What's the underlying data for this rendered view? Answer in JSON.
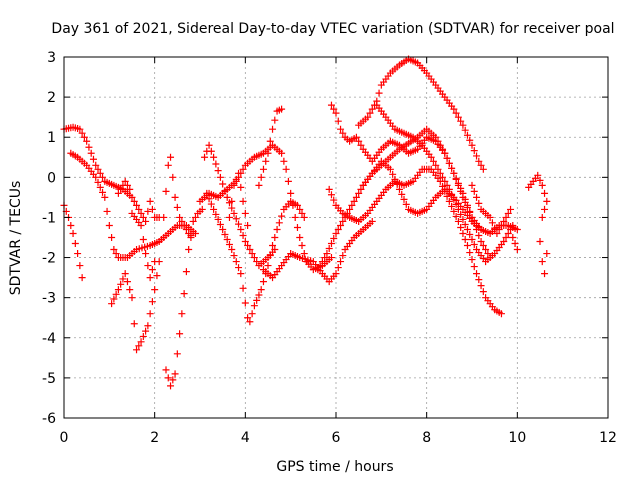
{
  "chart_data": {
    "type": "scatter",
    "title": "Day 361 of 2021, Sidereal Day-to-day VTEC variation (SDTVAR) for receiver poal",
    "xlabel": "GPS time / hours",
    "ylabel": "SDTVAR / TECUs",
    "xlim": [
      0,
      12
    ],
    "ylim": [
      -6,
      3
    ],
    "xticks": [
      "0",
      "2",
      "4",
      "6",
      "8",
      "10",
      "12"
    ],
    "yticks": [
      "-6",
      "-5",
      "-4",
      "-3",
      "-2",
      "-1",
      "0",
      "1",
      "2",
      "3"
    ],
    "marker": "+",
    "grid": true,
    "color": "#ff0000",
    "series": [
      {
        "name": "s1",
        "points": [
          [
            0.0,
            1.2
          ],
          [
            0.2,
            1.25
          ],
          [
            0.35,
            1.2
          ],
          [
            0.5,
            0.9
          ],
          [
            0.7,
            0.3
          ],
          [
            0.9,
            -0.1
          ],
          [
            1.1,
            -0.2
          ],
          [
            1.3,
            -0.3
          ],
          [
            1.5,
            -0.5
          ],
          [
            1.7,
            -0.9
          ],
          [
            1.8,
            -1.1
          ],
          [
            1.9,
            -0.6
          ],
          [
            2.0,
            -1.0
          ],
          [
            2.1,
            -1.0
          ]
        ]
      },
      {
        "name": "s2",
        "points": [
          [
            0.0,
            -0.7
          ],
          [
            0.1,
            -1.0
          ],
          [
            0.2,
            -1.4
          ],
          [
            0.3,
            -1.9
          ],
          [
            0.4,
            -2.5
          ]
        ]
      },
      {
        "name": "s3",
        "points": [
          [
            0.15,
            0.6
          ],
          [
            0.3,
            0.5
          ],
          [
            0.5,
            0.3
          ],
          [
            0.7,
            0.0
          ],
          [
            0.9,
            -0.5
          ],
          [
            1.0,
            -1.2
          ],
          [
            1.1,
            -1.8
          ],
          [
            1.2,
            -2.0
          ],
          [
            1.4,
            -2.0
          ],
          [
            1.6,
            -1.8
          ],
          [
            1.9,
            -1.7
          ],
          [
            2.1,
            -1.6
          ],
          [
            2.3,
            -1.4
          ],
          [
            2.5,
            -1.2
          ],
          [
            2.7,
            -1.2
          ],
          [
            2.9,
            -1.4
          ]
        ]
      },
      {
        "name": "s4",
        "points": [
          [
            1.05,
            -3.15
          ],
          [
            1.2,
            -2.8
          ],
          [
            1.35,
            -2.4
          ],
          [
            1.5,
            -3.0
          ],
          [
            1.6,
            -4.3
          ],
          [
            1.7,
            -4.1
          ],
          [
            1.85,
            -3.7
          ],
          [
            2.0,
            -2.8
          ],
          [
            2.1,
            -2.1
          ],
          [
            2.2,
            -1.0
          ],
          [
            2.3,
            0.3
          ],
          [
            2.35,
            0.5
          ],
          [
            2.45,
            -0.5
          ],
          [
            2.55,
            -1.0
          ],
          [
            2.7,
            -1.3
          ],
          [
            2.8,
            -1.5
          ]
        ]
      },
      {
        "name": "s5",
        "points": [
          [
            1.2,
            -0.4
          ],
          [
            1.35,
            -0.1
          ],
          [
            1.45,
            -0.3
          ],
          [
            1.5,
            -0.9
          ],
          [
            1.7,
            -1.2
          ],
          [
            1.8,
            -1.9
          ],
          [
            1.9,
            -2.5
          ],
          [
            2.0,
            -2.1
          ]
        ]
      },
      {
        "name": "s6",
        "points": [
          [
            2.25,
            -4.8
          ],
          [
            2.35,
            -5.2
          ],
          [
            2.45,
            -4.9
          ],
          [
            2.55,
            -3.9
          ],
          [
            2.65,
            -2.9
          ],
          [
            2.75,
            -1.8
          ],
          [
            2.85,
            -1.1
          ],
          [
            2.95,
            -0.9
          ],
          [
            3.05,
            -0.8
          ]
        ]
      },
      {
        "name": "s7",
        "points": [
          [
            3.1,
            0.5
          ],
          [
            3.2,
            0.8
          ],
          [
            3.3,
            0.5
          ],
          [
            3.45,
            0.0
          ],
          [
            3.6,
            -0.5
          ],
          [
            3.75,
            -0.9
          ],
          [
            3.9,
            -1.3
          ],
          [
            4.0,
            -1.6
          ],
          [
            4.15,
            -1.9
          ],
          [
            4.3,
            -2.2
          ],
          [
            4.5,
            -2.0
          ],
          [
            4.65,
            -1.8
          ]
        ]
      },
      {
        "name": "s8",
        "points": [
          [
            3.15,
            -0.4
          ],
          [
            3.3,
            -0.8
          ],
          [
            3.5,
            -1.3
          ],
          [
            3.7,
            -1.8
          ],
          [
            3.9,
            -2.4
          ],
          [
            4.05,
            -3.5
          ],
          [
            4.1,
            -3.6
          ],
          [
            4.2,
            -3.2
          ],
          [
            4.35,
            -2.8
          ],
          [
            4.5,
            -2.2
          ],
          [
            4.6,
            -1.7
          ],
          [
            4.7,
            -1.3
          ],
          [
            4.85,
            -0.8
          ],
          [
            5.0,
            -0.6
          ],
          [
            5.15,
            -0.7
          ],
          [
            5.3,
            -1.0
          ]
        ]
      },
      {
        "name": "s9",
        "points": [
          [
            3.0,
            -0.6
          ],
          [
            3.2,
            -0.4
          ],
          [
            3.4,
            -0.5
          ],
          [
            3.6,
            -0.3
          ],
          [
            3.8,
            -0.1
          ],
          [
            4.0,
            0.3
          ],
          [
            4.2,
            0.5
          ],
          [
            4.4,
            0.6
          ],
          [
            4.6,
            0.8
          ],
          [
            4.8,
            0.6
          ],
          [
            4.9,
            0.2
          ],
          [
            5.0,
            -0.4
          ],
          [
            5.1,
            -1.0
          ],
          [
            5.2,
            -1.5
          ],
          [
            5.35,
            -2.1
          ],
          [
            5.5,
            -2.3
          ],
          [
            5.7,
            -2.2
          ],
          [
            5.9,
            -2.0
          ]
        ]
      },
      {
        "name": "s10",
        "points": [
          [
            3.65,
            -1.0
          ],
          [
            3.75,
            -0.2
          ],
          [
            3.85,
            0.1
          ],
          [
            3.95,
            -0.6
          ],
          [
            4.05,
            -1.2
          ]
        ]
      },
      {
        "name": "s11",
        "points": [
          [
            4.3,
            -0.2
          ],
          [
            4.4,
            0.2
          ],
          [
            4.5,
            0.6
          ],
          [
            4.6,
            1.2
          ],
          [
            4.7,
            1.65
          ],
          [
            4.8,
            1.7
          ]
        ]
      },
      {
        "name": "s12",
        "points": [
          [
            4.4,
            -2.3
          ],
          [
            4.6,
            -2.5
          ],
          [
            4.8,
            -2.2
          ],
          [
            5.0,
            -1.9
          ],
          [
            5.2,
            -2.0
          ],
          [
            5.5,
            -2.1
          ],
          [
            5.7,
            -2.4
          ],
          [
            5.85,
            -2.6
          ],
          [
            6.0,
            -2.4
          ],
          [
            6.2,
            -1.8
          ],
          [
            6.4,
            -1.5
          ],
          [
            6.6,
            -1.3
          ],
          [
            6.8,
            -1.1
          ]
        ]
      },
      {
        "name": "s13",
        "points": [
          [
            5.6,
            -2.3
          ],
          [
            5.8,
            -1.9
          ],
          [
            6.0,
            -1.4
          ],
          [
            6.2,
            -1.0
          ],
          [
            6.4,
            -0.6
          ],
          [
            6.6,
            -0.2
          ],
          [
            6.8,
            0.1
          ],
          [
            7.0,
            0.4
          ],
          [
            7.2,
            0.2
          ],
          [
            7.4,
            -0.3
          ],
          [
            7.6,
            -0.8
          ],
          [
            7.8,
            -0.9
          ],
          [
            8.0,
            -0.8
          ],
          [
            8.2,
            -0.5
          ],
          [
            8.4,
            -0.3
          ],
          [
            8.6,
            -0.5
          ],
          [
            8.8,
            -0.8
          ],
          [
            9.0,
            -1.1
          ],
          [
            9.2,
            -1.3
          ]
        ]
      },
      {
        "name": "s14",
        "points": [
          [
            5.85,
            -0.3
          ],
          [
            6.0,
            -0.7
          ],
          [
            6.15,
            -0.9
          ],
          [
            6.3,
            -1.0
          ],
          [
            6.5,
            -1.1
          ],
          [
            6.7,
            -0.9
          ],
          [
            6.9,
            -0.6
          ],
          [
            7.1,
            -0.3
          ],
          [
            7.3,
            -0.1
          ],
          [
            7.5,
            -0.2
          ],
          [
            7.7,
            -0.1
          ],
          [
            7.9,
            0.2
          ],
          [
            8.1,
            0.2
          ],
          [
            8.3,
            -0.1
          ],
          [
            8.5,
            -0.6
          ],
          [
            8.7,
            -1.1
          ],
          [
            8.9,
            -1.7
          ],
          [
            9.1,
            -2.4
          ],
          [
            9.3,
            -3.0
          ],
          [
            9.5,
            -3.3
          ],
          [
            9.65,
            -3.4
          ]
        ]
      },
      {
        "name": "s15",
        "points": [
          [
            5.9,
            1.8
          ],
          [
            6.0,
            1.6
          ],
          [
            6.1,
            1.2
          ],
          [
            6.2,
            1.0
          ],
          [
            6.3,
            0.9
          ],
          [
            6.45,
            1.0
          ],
          [
            6.6,
            0.7
          ],
          [
            6.8,
            0.4
          ],
          [
            7.0,
            0.7
          ],
          [
            7.2,
            0.9
          ],
          [
            7.4,
            0.8
          ],
          [
            7.6,
            0.6
          ],
          [
            7.8,
            0.7
          ],
          [
            8.0,
            1.0
          ],
          [
            8.2,
            0.9
          ],
          [
            8.4,
            0.6
          ],
          [
            8.6,
            0.1
          ],
          [
            8.8,
            -0.4
          ],
          [
            9.0,
            -1.0
          ],
          [
            9.2,
            -1.6
          ],
          [
            9.4,
            -2.0
          ]
        ]
      },
      {
        "name": "s16",
        "points": [
          [
            6.5,
            1.3
          ],
          [
            6.7,
            1.5
          ],
          [
            6.9,
            1.9
          ],
          [
            7.0,
            2.3
          ],
          [
            7.2,
            2.6
          ],
          [
            7.4,
            2.8
          ],
          [
            7.6,
            2.95
          ],
          [
            7.8,
            2.85
          ],
          [
            8.0,
            2.6
          ],
          [
            8.2,
            2.3
          ],
          [
            8.4,
            2.0
          ],
          [
            8.6,
            1.7
          ],
          [
            8.8,
            1.3
          ],
          [
            9.0,
            0.8
          ],
          [
            9.15,
            0.4
          ],
          [
            9.25,
            0.2
          ]
        ]
      },
      {
        "name": "s17",
        "points": [
          [
            6.6,
            -0.2
          ],
          [
            6.8,
            0.1
          ],
          [
            7.0,
            0.3
          ],
          [
            7.2,
            0.5
          ],
          [
            7.4,
            0.7
          ],
          [
            7.6,
            0.85
          ],
          [
            7.8,
            1.0
          ],
          [
            8.0,
            1.2
          ],
          [
            8.2,
            1.0
          ],
          [
            8.4,
            0.6
          ],
          [
            8.6,
            0.1
          ],
          [
            8.8,
            -0.5
          ],
          [
            9.0,
            -1.0
          ],
          [
            9.2,
            -1.3
          ],
          [
            9.4,
            -1.4
          ],
          [
            9.6,
            -1.2
          ],
          [
            9.8,
            -1.2
          ],
          [
            10.0,
            -1.3
          ]
        ]
      },
      {
        "name": "s18",
        "points": [
          [
            6.9,
            1.8
          ],
          [
            7.1,
            1.5
          ],
          [
            7.3,
            1.2
          ],
          [
            7.5,
            1.1
          ],
          [
            7.7,
            1.0
          ],
          [
            7.9,
            0.8
          ],
          [
            8.1,
            0.5
          ],
          [
            8.3,
            0.1
          ],
          [
            8.5,
            -0.3
          ],
          [
            8.7,
            -0.8
          ],
          [
            8.9,
            -1.3
          ],
          [
            9.1,
            -1.8
          ],
          [
            9.3,
            -2.1
          ],
          [
            9.5,
            -1.9
          ],
          [
            9.7,
            -1.6
          ],
          [
            9.9,
            -1.2
          ]
        ]
      },
      {
        "name": "s19",
        "points": [
          [
            9.0,
            -0.2
          ],
          [
            9.2,
            -0.8
          ],
          [
            9.4,
            -1.0
          ],
          [
            9.55,
            -1.4
          ],
          [
            9.7,
            -1.1
          ],
          [
            9.85,
            -0.8
          ],
          [
            9.9,
            -1.5
          ],
          [
            10.0,
            -1.8
          ]
        ]
      },
      {
        "name": "s20",
        "points": [
          [
            10.25,
            -0.25
          ],
          [
            10.45,
            0.05
          ],
          [
            10.55,
            -0.2
          ],
          [
            10.65,
            -0.6
          ],
          [
            10.55,
            -1.0
          ],
          [
            10.5,
            -1.6
          ],
          [
            10.55,
            -2.1
          ],
          [
            10.6,
            -2.4
          ],
          [
            10.65,
            -1.9
          ]
        ]
      }
    ]
  }
}
